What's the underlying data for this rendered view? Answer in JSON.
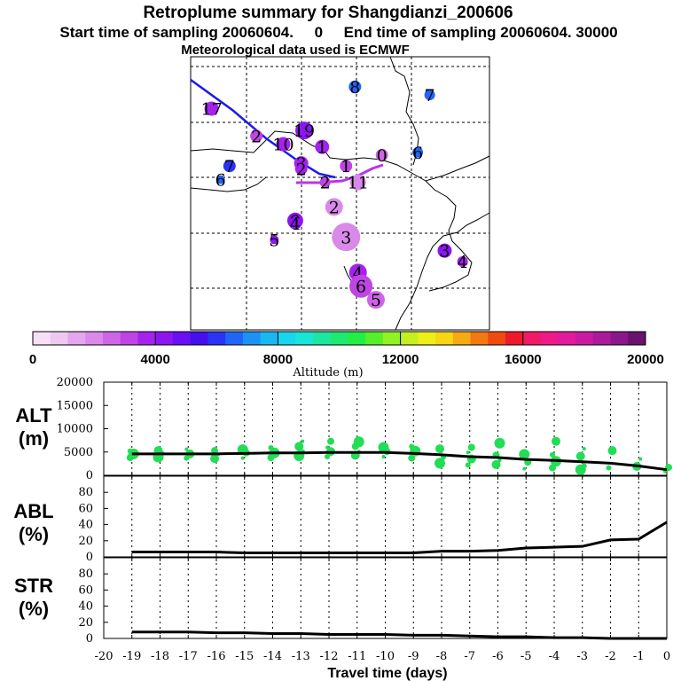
{
  "header": {
    "title": "Retroplume summary for Shangdianzi_200606",
    "line2": "Start time of sampling 20060604.     0     End time of sampling 20060604. 30000",
    "line3": "Meteorological data used is ECMWF"
  },
  "colors": {
    "track_blue": "#1a1aee",
    "track_magenta": "#bb33ee",
    "scatter_green": "#22dd55",
    "line_black": "#000000",
    "colormap": [
      "#f7e0f7",
      "#efc8f2",
      "#e4a6ee",
      "#d98ae9",
      "#cd66e6",
      "#bf44e4",
      "#a522ee",
      "#8a16f0",
      "#6a10f4",
      "#4410ee",
      "#2a33f6",
      "#1f66f6",
      "#1c92f4",
      "#1ab8f1",
      "#17d6ee",
      "#18e6d6",
      "#1ce6a0",
      "#1eea72",
      "#22ee44",
      "#55f02a",
      "#90f222",
      "#c4f01e",
      "#eeee18",
      "#f7d614",
      "#f6aa12",
      "#f27810",
      "#ef4a10",
      "#ee1a2a",
      "#f01a66",
      "#ee1a8a",
      "#e21a9c",
      "#ca1aa2",
      "#aa1a99",
      "#8a188a",
      "#6a126e"
    ]
  },
  "chart_data": [
    {
      "id": "map",
      "type": "scatter",
      "title": "Retroplume summary for Shangdianzi_200606",
      "description_labels": "Numbered circles mark plume centroid per travel day; color = altitude, size = spread",
      "points": [
        {
          "label": "8",
          "x_frac": 0.55,
          "y_frac": 0.11,
          "alt": 6700,
          "size": 7
        },
        {
          "label": "7",
          "x_frac": 0.8,
          "y_frac": 0.14,
          "alt": 6400,
          "size": 6
        },
        {
          "label": "17",
          "x_frac": 0.07,
          "y_frac": 0.19,
          "alt": 3700,
          "size": 8
        },
        {
          "label": "19",
          "x_frac": 0.38,
          "y_frac": 0.27,
          "alt": 4400,
          "size": 10
        },
        {
          "label": "2",
          "x_frac": 0.22,
          "y_frac": 0.29,
          "alt": 3400,
          "size": 7
        },
        {
          "label": "10",
          "x_frac": 0.31,
          "y_frac": 0.32,
          "alt": 3900,
          "size": 8
        },
        {
          "label": "1",
          "x_frac": 0.44,
          "y_frac": 0.33,
          "alt": 3500,
          "size": 8
        },
        {
          "label": "0",
          "x_frac": 0.64,
          "y_frac": 0.36,
          "alt": 2800,
          "size": 7
        },
        {
          "label": "6",
          "x_frac": 0.76,
          "y_frac": 0.35,
          "alt": 6300,
          "size": 6
        },
        {
          "label": "7",
          "x_frac": 0.13,
          "y_frac": 0.4,
          "alt": 6200,
          "size": 7
        },
        {
          "label": "6",
          "x_frac": 0.1,
          "y_frac": 0.45,
          "alt": 6500,
          "size": 5
        },
        {
          "label": "3",
          "x_frac": 0.37,
          "y_frac": 0.39,
          "alt": 3700,
          "size": 8
        },
        {
          "label": "2",
          "x_frac": 0.37,
          "y_frac": 0.41,
          "alt": 3500,
          "size": 7
        },
        {
          "label": "1",
          "x_frac": 0.52,
          "y_frac": 0.4,
          "alt": 3300,
          "size": 7
        },
        {
          "label": "2",
          "x_frac": 0.45,
          "y_frac": 0.46,
          "alt": 3300,
          "size": 6
        },
        {
          "label": "11",
          "x_frac": 0.56,
          "y_frac": 0.46,
          "alt": 2200,
          "size": 9
        },
        {
          "label": "2",
          "x_frac": 0.48,
          "y_frac": 0.55,
          "alt": 2000,
          "size": 10
        },
        {
          "label": "9",
          "x_frac": 0.35,
          "y_frac": 0.6,
          "alt": 4200,
          "size": 9
        },
        {
          "label": "4",
          "x_frac": 0.35,
          "y_frac": 0.61,
          "alt": 4100,
          "size": 7
        },
        {
          "label": "5",
          "x_frac": 0.28,
          "y_frac": 0.67,
          "alt": 4300,
          "size": 5
        },
        {
          "label": "3",
          "x_frac": 0.52,
          "y_frac": 0.66,
          "alt": 2000,
          "size": 16
        },
        {
          "label": "3",
          "x_frac": 0.85,
          "y_frac": 0.71,
          "alt": 4400,
          "size": 8
        },
        {
          "label": "4",
          "x_frac": 0.91,
          "y_frac": 0.75,
          "alt": 3500,
          "size": 6
        },
        {
          "label": "4",
          "x_frac": 0.56,
          "y_frac": 0.79,
          "alt": 3600,
          "size": 10
        },
        {
          "label": "6",
          "x_frac": 0.57,
          "y_frac": 0.84,
          "alt": 3400,
          "size": 13
        },
        {
          "label": "5",
          "x_frac": 0.62,
          "y_frac": 0.89,
          "alt": 2300,
          "size": 10
        }
      ]
    },
    {
      "id": "colorbar",
      "type": "heatmap",
      "xlabel": "Altitude (m)",
      "range": [
        0,
        20000
      ],
      "ticks": [
        "0",
        "4000",
        "8000",
        "12000",
        "16000",
        "20000"
      ]
    },
    {
      "id": "alt",
      "type": "line",
      "ylabel": "ALT\n(m)",
      "ylabel_line1": "ALT",
      "ylabel_line2": "(m)",
      "xlim": [
        -20,
        0
      ],
      "ylim": [
        0,
        20000
      ],
      "yticks": [
        "0",
        "5000",
        "10000",
        "15000",
        "20000"
      ],
      "x": [
        -19,
        -18,
        -17,
        -16,
        -15,
        -14,
        -13,
        -12,
        -11,
        -10,
        -9,
        -8,
        -7,
        -6,
        -5,
        -4,
        -3,
        -2,
        -1,
        0
      ],
      "values": [
        4600,
        4600,
        4600,
        4600,
        4700,
        4800,
        4800,
        4900,
        4900,
        4900,
        4700,
        4400,
        4000,
        3800,
        3400,
        3200,
        2900,
        2600,
        2000,
        1200
      ],
      "scatter": [
        {
          "x": -19,
          "ys": [
            3800,
            4600,
            5200
          ]
        },
        {
          "x": -18,
          "ys": [
            3900,
            4700,
            5300
          ]
        },
        {
          "x": -17,
          "ys": [
            3700,
            4600,
            5600
          ]
        },
        {
          "x": -16,
          "ys": [
            3600,
            4500,
            5300
          ]
        },
        {
          "x": -15,
          "ys": [
            3700,
            4800,
            5500
          ]
        },
        {
          "x": -14,
          "ys": [
            3800,
            4800,
            5900
          ]
        },
        {
          "x": -13,
          "ys": [
            4200,
            5000,
            6200,
            7300
          ]
        },
        {
          "x": -12,
          "ys": [
            4000,
            5100,
            6000,
            7300
          ]
        },
        {
          "x": -11,
          "ys": [
            4300,
            5100,
            6200,
            7200
          ]
        },
        {
          "x": -10,
          "ys": [
            4000,
            5100,
            6000
          ]
        },
        {
          "x": -9,
          "ys": [
            3700,
            5200,
            6200
          ]
        },
        {
          "x": -8,
          "ys": [
            2600,
            3900,
            5700
          ]
        },
        {
          "x": -7,
          "ys": [
            2200,
            3500,
            4900,
            6000
          ]
        },
        {
          "x": -6,
          "ys": [
            2300,
            3200,
            4300,
            6900
          ]
        },
        {
          "x": -5,
          "ys": [
            1400,
            2800,
            4500
          ]
        },
        {
          "x": -4,
          "ys": [
            1600,
            3000,
            4400,
            7300
          ]
        },
        {
          "x": -3,
          "ys": [
            1200,
            2000,
            4100,
            5700
          ]
        },
        {
          "x": -2,
          "ys": [
            1600,
            5300
          ]
        },
        {
          "x": -1,
          "ys": [
            1900,
            3500
          ]
        },
        {
          "x": 0,
          "ys": [
            800,
            1700
          ]
        }
      ]
    },
    {
      "id": "abl",
      "type": "line",
      "ylabel_line1": "ABL",
      "ylabel_line2": "(%)",
      "xlim": [
        -20,
        0
      ],
      "ylim": [
        0,
        100
      ],
      "yticks": [
        "0",
        "20",
        "40",
        "60",
        "80"
      ],
      "x": [
        -19,
        -18,
        -17,
        -16,
        -15,
        -14,
        -13,
        -12,
        -11,
        -10,
        -9,
        -8,
        -7,
        -6,
        -5,
        -4,
        -3,
        -2,
        -1,
        0
      ],
      "values": [
        6,
        6,
        6,
        6,
        5,
        5,
        5,
        5,
        5,
        5,
        5,
        7,
        7,
        8,
        11,
        12,
        13,
        21,
        22,
        43
      ]
    },
    {
      "id": "str",
      "type": "line",
      "ylabel_line1": "STR",
      "ylabel_line2": "(%)",
      "xlim": [
        -20,
        0
      ],
      "ylim": [
        0,
        100
      ],
      "yticks": [
        "0",
        "20",
        "40",
        "60",
        "80"
      ],
      "xlabel": "Travel time (days)",
      "xticks": [
        "-20",
        "-19",
        "-18",
        "-17",
        "-16",
        "-15",
        "-14",
        "-13",
        "-12",
        "-11",
        "-10",
        "-9",
        "-8",
        "-7",
        "-6",
        "-5",
        "-4",
        "-3",
        "-2",
        "-1",
        "0"
      ],
      "x": [
        -19,
        -18,
        -17,
        -16,
        -15,
        -14,
        -13,
        -12,
        -11,
        -10,
        -9,
        -8,
        -7,
        -6,
        -5,
        -4,
        -3,
        -2,
        -1,
        0
      ],
      "values": [
        8,
        8,
        8,
        7,
        7,
        6,
        6,
        5,
        5,
        5,
        4,
        4,
        3,
        2,
        2,
        1,
        1,
        0,
        0,
        0
      ]
    }
  ]
}
